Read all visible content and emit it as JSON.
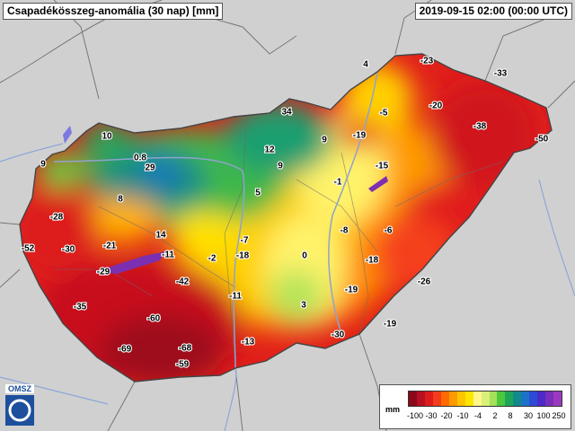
{
  "header": {
    "title": "Csapadékösszeg-anomália (30 nap) [mm]",
    "timestamp": "2019-09-15 02:00 (00:00 UTC)"
  },
  "logo": {
    "text": "OMSZ",
    "icon": "omsz-swirl-logo-icon"
  },
  "legend": {
    "unit": "mm",
    "colors": [
      "#8a0a1a",
      "#b80f22",
      "#dd1c1c",
      "#f23c1b",
      "#ff6a00",
      "#ff9a00",
      "#ffc400",
      "#ffe600",
      "#fff68c",
      "#d8f078",
      "#a6e05a",
      "#4cc83c",
      "#1fa55a",
      "#138a8a",
      "#1d72c8",
      "#2b4bd6",
      "#4a2ac8",
      "#7a2fb8",
      "#9b3ac0"
    ],
    "ticks": [
      "-100",
      "-30",
      "-20",
      "-10",
      "-4",
      "2",
      "8",
      "30",
      "100",
      "250"
    ]
  },
  "colors": {
    "outside": "#cfcfcf",
    "border": "#555555",
    "river": "#7e9bd4",
    "lake": "#7e7ae0"
  },
  "stations": [
    {
      "label": "4"
    },
    {
      "label": "-23"
    },
    {
      "label": "-33"
    },
    {
      "label": "-20"
    },
    {
      "label": "-5"
    },
    {
      "label": "34"
    },
    {
      "label": "-19"
    },
    {
      "label": "-38"
    },
    {
      "label": "-50"
    },
    {
      "label": "10"
    },
    {
      "label": "9"
    },
    {
      "label": "12"
    },
    {
      "label": "-15"
    },
    {
      "label": "0.8"
    },
    {
      "label": "29"
    },
    {
      "label": "9"
    },
    {
      "label": "9"
    },
    {
      "label": "-1"
    },
    {
      "label": "5"
    },
    {
      "label": "8"
    },
    {
      "label": "-28"
    },
    {
      "label": "-8"
    },
    {
      "label": "-6"
    },
    {
      "label": "14"
    },
    {
      "label": "-7"
    },
    {
      "label": "-52"
    },
    {
      "label": "-30"
    },
    {
      "label": "-21"
    },
    {
      "label": "-11"
    },
    {
      "label": "-2"
    },
    {
      "label": "-18"
    },
    {
      "label": "0"
    },
    {
      "label": "-18"
    },
    {
      "label": "-29"
    },
    {
      "label": "-42"
    },
    {
      "label": "-26"
    },
    {
      "label": "-11"
    },
    {
      "label": "-19"
    },
    {
      "label": "-35"
    },
    {
      "label": "3"
    },
    {
      "label": "-60"
    },
    {
      "label": "-19"
    },
    {
      "label": "-30"
    },
    {
      "label": "-13"
    },
    {
      "label": "-69"
    },
    {
      "label": "-68"
    },
    {
      "label": "-59"
    }
  ]
}
